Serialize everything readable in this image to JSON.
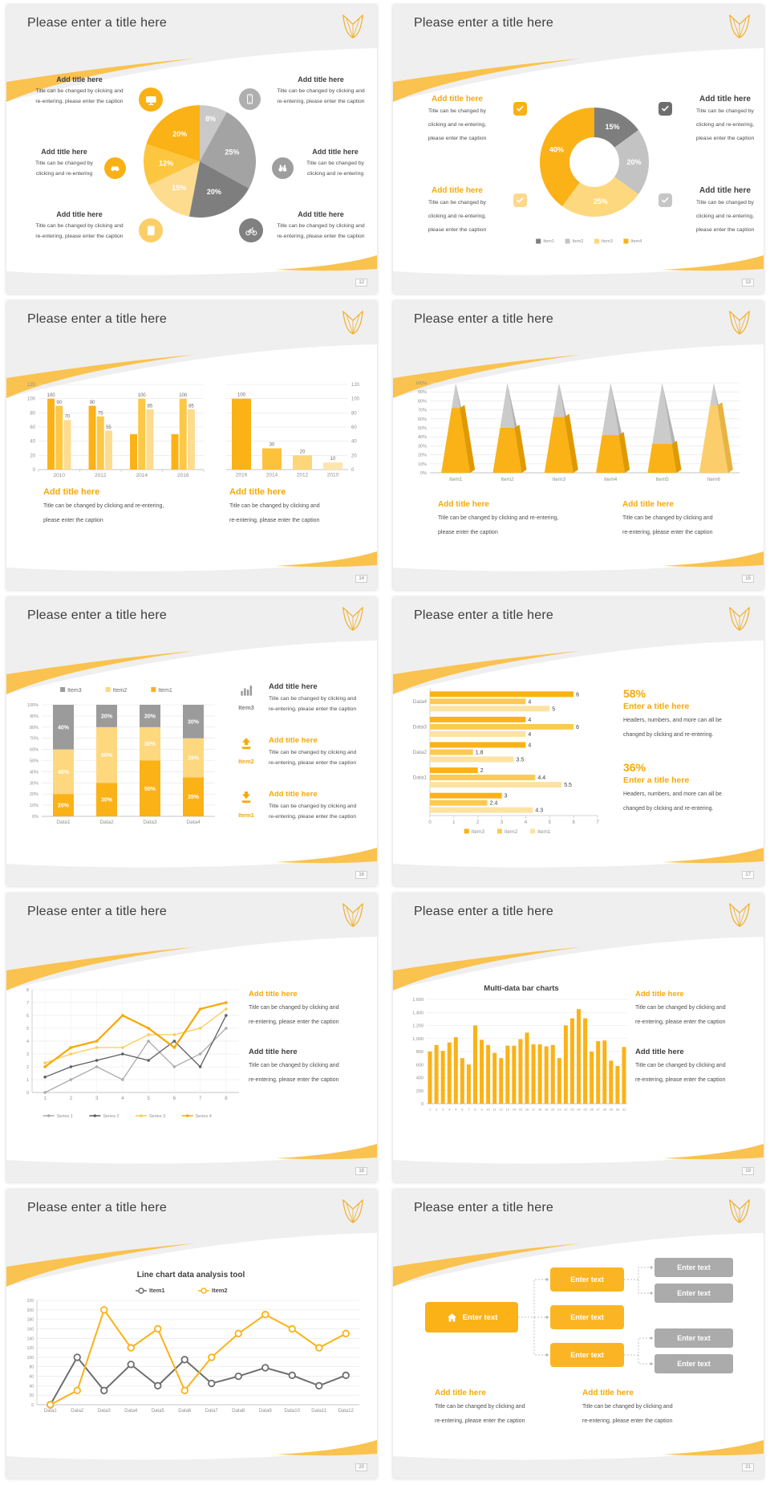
{
  "theme": {
    "accent": "#FBB217",
    "accent_text": "#F5A90B",
    "swoosh": "#FAC24F",
    "slide_bg": "#EFEFF0",
    "text_dark": "#3F3F3F",
    "caption_gray": "#4D4D4D",
    "axis_gray": "#8F8F8F",
    "gray_dark": "#7E7E7E",
    "gray_mid": "#A3A3A3",
    "gray_light": "#C9C9C9"
  },
  "common": {
    "slide_title": "Please enter a title here",
    "add_title": "Add title here",
    "enter_title": "Enter a title here",
    "enter_text": "Enter text",
    "cap_a1": "Title can be changed by clicking and",
    "cap_a2": "re-entering, please enter the caption",
    "cap_b1": "Title can be changed by clicking and re-entering,",
    "cap_b2": "please enter the caption",
    "cap_c1": "Title can be changed by",
    "cap_c2": "clicking and re-entering",
    "cap_d1": "Title can be changed by",
    "cap_d2": "clicking and re-entering,",
    "cap_d3": "please enter the caption",
    "cap_e1": "Headers, numbers, and more can all be",
    "cap_e2": "changed by clicking and re-entering."
  },
  "slides": {
    "s12": {
      "page": "12"
    },
    "s13": {
      "page": "13"
    },
    "s14": {
      "page": "14"
    },
    "s15": {
      "page": "15"
    },
    "s16": {
      "page": "16",
      "items": [
        "Item3",
        "Item2",
        "Item1"
      ]
    },
    "s17": {
      "page": "17",
      "stat1": "58%",
      "stat2": "36%"
    },
    "s18": {
      "page": "18"
    },
    "s19": {
      "page": "19",
      "chart_title": "Multi-data bar charts"
    },
    "s20": {
      "page": "20",
      "chart_title": "Line chart data analysis tool"
    },
    "s21": {
      "page": "21"
    }
  },
  "chart_data": [
    {
      "type": "pie",
      "slide": 12,
      "slices": [
        {
          "label": "8%",
          "value": 8,
          "color": "#C9C9C9"
        },
        {
          "label": "25%",
          "value": 25,
          "color": "#A3A3A3"
        },
        {
          "label": "20%",
          "value": 20,
          "color": "#7E7E7E"
        },
        {
          "label": "15%",
          "value": 15,
          "color": "#FDDC8F"
        },
        {
          "label": "12%",
          "value": 12,
          "color": "#FCC63F"
        },
        {
          "label": "20%",
          "value": 20,
          "color": "#FBB217"
        }
      ]
    },
    {
      "type": "donut",
      "slide": 13,
      "slices": [
        {
          "label": "15%",
          "value": 15,
          "color": "#7E7E7E"
        },
        {
          "label": "20%",
          "value": 20,
          "color": "#C3C3C3"
        },
        {
          "label": "25%",
          "value": 25,
          "color": "#FDD87E"
        },
        {
          "label": "40%",
          "value": 40,
          "color": "#FBB217"
        }
      ],
      "legend": [
        {
          "label": "Item1",
          "color": "#7E7E7E"
        },
        {
          "label": "Item2",
          "color": "#C3C3C3"
        },
        {
          "label": "Item3",
          "color": "#FDD87E"
        },
        {
          "label": "Item4",
          "color": "#FBB217"
        }
      ]
    },
    {
      "type": "bar-grouped",
      "slide": 14,
      "categories": [
        "2010",
        "2012",
        "2014",
        "2016"
      ],
      "groups": [
        [
          100,
          90,
          70
        ],
        [
          90,
          75,
          55
        ],
        [
          50,
          100,
          85
        ],
        [
          50,
          100,
          85
        ]
      ],
      "labels": [
        [
          "100",
          "90",
          "70"
        ],
        [
          "90",
          "75",
          "55"
        ],
        [
          null,
          "100",
          "85"
        ],
        [
          null,
          "100",
          "85"
        ]
      ],
      "colors": [
        "#FBB217",
        "#FCC845",
        "#FDDC8F"
      ],
      "ymax": 120,
      "ystep": 20,
      "axis": "left"
    },
    {
      "type": "bar",
      "slide": 14,
      "categories": [
        "2016",
        "2014",
        "2012",
        "2010"
      ],
      "values": [
        100,
        30,
        20,
        10
      ],
      "labels": [
        "100",
        "30",
        "20",
        "10"
      ],
      "colors": [
        "#FBB217",
        "#FCC23C",
        "#FDD67A",
        "#FEE5AC"
      ],
      "ymax": 120,
      "ystep": 20,
      "axis": "right"
    },
    {
      "type": "pyramid",
      "slide": 15,
      "categories": [
        "Item1",
        "Item2",
        "Item3",
        "Item4",
        "Item5",
        "Item6"
      ],
      "values": [
        72,
        50,
        62,
        42,
        32,
        75
      ],
      "front_colors": [
        "#FBB217",
        "#FBB217",
        "#FBB217",
        "#FBB217",
        "#FBB217",
        "#FCCE6B"
      ],
      "facet_colors": [
        "#E09A00",
        "#E09A00",
        "#E09A00",
        "#E09A00",
        "#E09A00",
        "#E9B341"
      ],
      "gray_front": "#CBCBCB",
      "gray_facet": "#B3B3B3",
      "ymax": 100,
      "ystep": 10
    },
    {
      "type": "bar-stacked",
      "slide": 16,
      "categories": [
        "Data1",
        "Data2",
        "Data3",
        "Data4"
      ],
      "series": [
        {
          "name": "Item1",
          "color": "#FBB217",
          "values": [
            20,
            30,
            50,
            35
          ]
        },
        {
          "name": "Item2",
          "color": "#FDD87E",
          "values": [
            40,
            50,
            30,
            35
          ]
        },
        {
          "name": "Item3",
          "color": "#9B9B9B",
          "values": [
            40,
            20,
            20,
            30
          ]
        }
      ],
      "legend_order": [
        "Item3",
        "Item2",
        "Item1"
      ],
      "ymax": 100,
      "ystep": 10
    },
    {
      "type": "bar-horizontal",
      "slide": 17,
      "groups": [
        [
          6,
          4,
          5
        ],
        [
          4,
          6,
          4
        ],
        [
          4,
          1.8,
          3.5
        ],
        [
          2,
          4.4,
          5.5
        ],
        [
          3,
          2.4,
          4.3
        ]
      ],
      "group_labels": [
        "Data4",
        "Data3",
        "Data2",
        "Data1",
        ""
      ],
      "series": [
        "Item3",
        "Item2",
        "Item1"
      ],
      "colors": [
        "#FBB217",
        "#FCCA52",
        "#FDE2A2"
      ],
      "xmax": 7,
      "xstep": 1
    },
    {
      "type": "line",
      "slide": 18,
      "x": [
        "1",
        "2",
        "3",
        "4",
        "5",
        "6",
        "7",
        "8"
      ],
      "ymax": 8,
      "ystep": 1,
      "series": [
        {
          "name": "Series 1",
          "color": "#ACACAC",
          "width": 1.3,
          "values": [
            0,
            1,
            2,
            1,
            4,
            2,
            3,
            5
          ]
        },
        {
          "name": "Series 2",
          "color": "#5F5F5F",
          "width": 1.3,
          "values": [
            1.2,
            2,
            2.5,
            3,
            2.5,
            4,
            2,
            6
          ]
        },
        {
          "name": "Series 3",
          "color": "#FCCA52",
          "width": 1.3,
          "values": [
            2.3,
            3,
            3.5,
            3.5,
            4.5,
            4.5,
            5,
            6.5
          ]
        },
        {
          "name": "Series 4",
          "color": "#F6A800",
          "width": 2.2,
          "values": [
            2,
            3.5,
            4,
            6,
            5,
            3.5,
            6.5,
            7
          ]
        }
      ]
    },
    {
      "type": "bar",
      "slide": 19,
      "categories": [
        "1",
        "2",
        "3",
        "4",
        "5",
        "6",
        "7",
        "8",
        "9",
        "10",
        "11",
        "12",
        "13",
        "14",
        "15",
        "16",
        "17",
        "18",
        "19",
        "20",
        "21",
        "22",
        "23",
        "24",
        "25",
        "26",
        "27",
        "28",
        "29",
        "30",
        "31"
      ],
      "values": [
        800,
        900,
        810,
        940,
        1020,
        700,
        600,
        1200,
        980,
        900,
        780,
        700,
        890,
        890,
        990,
        1090,
        910,
        910,
        880,
        900,
        700,
        1200,
        1310,
        1450,
        1310,
        800,
        960,
        970,
        660,
        580,
        870
      ],
      "color": "#FBB217",
      "ymax": 1600,
      "ystep": 200,
      "comma": true,
      "axis": "left"
    },
    {
      "type": "line-markers",
      "slide": 20,
      "categories": [
        "Data1",
        "Data2",
        "Data3",
        "Data4",
        "Data5",
        "Data6",
        "Data7",
        "Data8",
        "Data9",
        "Data10",
        "Data11",
        "Data12"
      ],
      "ymax": 220,
      "ystep": 20,
      "series": [
        {
          "name": "Item1",
          "color": "#6E6E6E",
          "width": 2,
          "values": [
            0,
            100,
            30,
            85,
            40,
            95,
            45,
            60,
            78,
            62,
            40,
            62
          ]
        },
        {
          "name": "Item2",
          "color": "#FBB217",
          "width": 2,
          "values": [
            0,
            30,
            200,
            120,
            160,
            30,
            100,
            150,
            190,
            160,
            120,
            150
          ]
        }
      ]
    }
  ]
}
